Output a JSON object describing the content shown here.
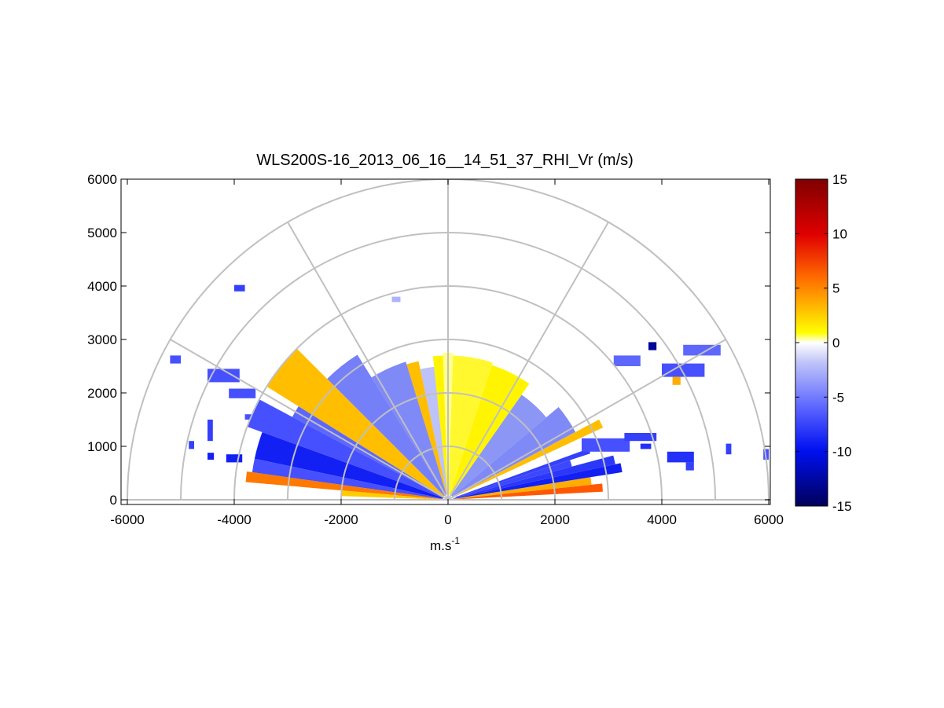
{
  "chart_data": {
    "type": "heatmap",
    "subtype": "polar-rhi-sector",
    "title": "WLS200S-16_2013_06_16__14_51_37_RHI_Vr (m/s)",
    "xlabel_base": "m.s",
    "xlabel_sup": "-1",
    "xlim": [
      -6000,
      6000
    ],
    "ylim": [
      0,
      6000
    ],
    "xticks": [
      -6000,
      -4000,
      -2000,
      0,
      2000,
      4000,
      6000
    ],
    "yticks": [
      0,
      1000,
      2000,
      3000,
      4000,
      5000,
      6000
    ],
    "polar_grid": {
      "rings": [
        1000,
        2000,
        3000,
        4000,
        5000,
        6000
      ],
      "spoke_angles_deg": [
        0,
        30,
        60,
        90,
        120,
        150,
        180
      ]
    },
    "colorbar": {
      "label_ticks": [
        15,
        10,
        5,
        0,
        -5,
        -10,
        -15
      ],
      "clim": [
        -15,
        15
      ]
    },
    "sectors": [
      {
        "a1": 3,
        "a2": 6,
        "r1": 100,
        "r2": 2900,
        "v": 7.5
      },
      {
        "a1": 6,
        "a2": 9,
        "r1": 100,
        "r2": 2700,
        "v": 5
      },
      {
        "a1": 9,
        "a2": 12,
        "r1": 100,
        "r2": 3300,
        "v": -9
      },
      {
        "a1": 12,
        "a2": 15,
        "r1": 100,
        "r2": 3200,
        "v": -7.5
      },
      {
        "a1": 15,
        "a2": 18,
        "r1": 150,
        "r2": 2400,
        "v": -6.5
      },
      {
        "a1": 18,
        "a2": 20,
        "r1": 150,
        "r2": 2800,
        "v": -7
      },
      {
        "a1": 25,
        "a2": 28,
        "r1": 150,
        "r2": 3200,
        "v": 4.5
      },
      {
        "a1": 28,
        "a2": 40,
        "r1": 100,
        "r2": 2700,
        "v": -3.5
      },
      {
        "a1": 40,
        "a2": 55,
        "r1": 100,
        "r2": 2400,
        "v": -3
      },
      {
        "a1": 55,
        "a2": 72,
        "r1": 100,
        "r2": 2650,
        "v": 2.5
      },
      {
        "a1": 72,
        "a2": 88,
        "r1": 100,
        "r2": 2700,
        "v": 2
      },
      {
        "a1": 88,
        "a2": 92,
        "r1": 100,
        "r2": 2750,
        "v": 1
      },
      {
        "a1": 92,
        "a2": 96,
        "r1": 100,
        "r2": 2700,
        "v": 2.5
      },
      {
        "a1": 96,
        "a2": 102,
        "r1": 100,
        "r2": 2500,
        "v": -1.5
      },
      {
        "a1": 102,
        "a2": 107,
        "r1": 100,
        "r2": 2650,
        "v": 4.5
      },
      {
        "a1": 107,
        "a2": 122,
        "r1": 100,
        "r2": 2700,
        "v": -3.5
      },
      {
        "a1": 122,
        "a2": 135,
        "r1": 100,
        "r2": 3200,
        "v": -4
      },
      {
        "a1": 135,
        "a2": 148,
        "r1": 100,
        "r2": 4000,
        "v": 4.5
      },
      {
        "a1": 148,
        "a2": 152,
        "r1": 100,
        "r2": 3300,
        "v": -5
      },
      {
        "a1": 152,
        "a2": 160,
        "r1": 100,
        "r2": 4000,
        "v": -6
      },
      {
        "a1": 160,
        "a2": 168,
        "r1": 100,
        "r2": 3700,
        "v": -9
      },
      {
        "a1": 168,
        "a2": 172,
        "r1": 100,
        "r2": 3700,
        "v": -6
      },
      {
        "a1": 172,
        "a2": 175,
        "r1": 100,
        "r2": 3800,
        "v": 6.5
      },
      {
        "a1": 175,
        "a2": 178,
        "r1": 100,
        "r2": 2000,
        "v": 4
      }
    ],
    "patches": [
      {
        "x": -5200,
        "y": 2550,
        "w": 200,
        "h": 150,
        "v": -6
      },
      {
        "x": -4000,
        "y": 3900,
        "w": 200,
        "h": 120,
        "v": -7
      },
      {
        "x": -1050,
        "y": 3700,
        "w": 160,
        "h": 100,
        "v": -2
      },
      {
        "x": -4500,
        "y": 2200,
        "w": 600,
        "h": 250,
        "v": -6
      },
      {
        "x": -4100,
        "y": 1900,
        "w": 500,
        "h": 180,
        "v": -6
      },
      {
        "x": -3800,
        "y": 1500,
        "w": 200,
        "h": 100,
        "v": -6
      },
      {
        "x": -4500,
        "y": 1100,
        "w": 100,
        "h": 400,
        "v": -7
      },
      {
        "x": -4850,
        "y": 950,
        "w": 100,
        "h": 150,
        "v": -7
      },
      {
        "x": -4500,
        "y": 750,
        "w": 120,
        "h": 130,
        "v": -9
      },
      {
        "x": -4150,
        "y": 700,
        "w": 300,
        "h": 150,
        "v": -9
      },
      {
        "x": -3000,
        "y": 1100,
        "w": 350,
        "h": 250,
        "v": -6
      },
      {
        "x": 3750,
        "y": 2800,
        "w": 150,
        "h": 150,
        "v": -13
      },
      {
        "x": 4000,
        "y": 2300,
        "w": 800,
        "h": 250,
        "v": -6
      },
      {
        "x": 4400,
        "y": 2700,
        "w": 700,
        "h": 200,
        "v": -5
      },
      {
        "x": 4200,
        "y": 2150,
        "w": 150,
        "h": 150,
        "v": 5
      },
      {
        "x": 3100,
        "y": 2500,
        "w": 500,
        "h": 200,
        "v": -5
      },
      {
        "x": 2500,
        "y": 900,
        "w": 900,
        "h": 250,
        "v": -6
      },
      {
        "x": 3300,
        "y": 1100,
        "w": 600,
        "h": 150,
        "v": -7
      },
      {
        "x": 4100,
        "y": 700,
        "w": 500,
        "h": 200,
        "v": -8
      },
      {
        "x": 4450,
        "y": 550,
        "w": 150,
        "h": 150,
        "v": -7
      },
      {
        "x": 5200,
        "y": 850,
        "w": 100,
        "h": 200,
        "v": -7
      },
      {
        "x": 5900,
        "y": 750,
        "w": 100,
        "h": 200,
        "v": -6
      },
      {
        "x": 3600,
        "y": 950,
        "w": 200,
        "h": 100,
        "v": -8
      }
    ]
  }
}
